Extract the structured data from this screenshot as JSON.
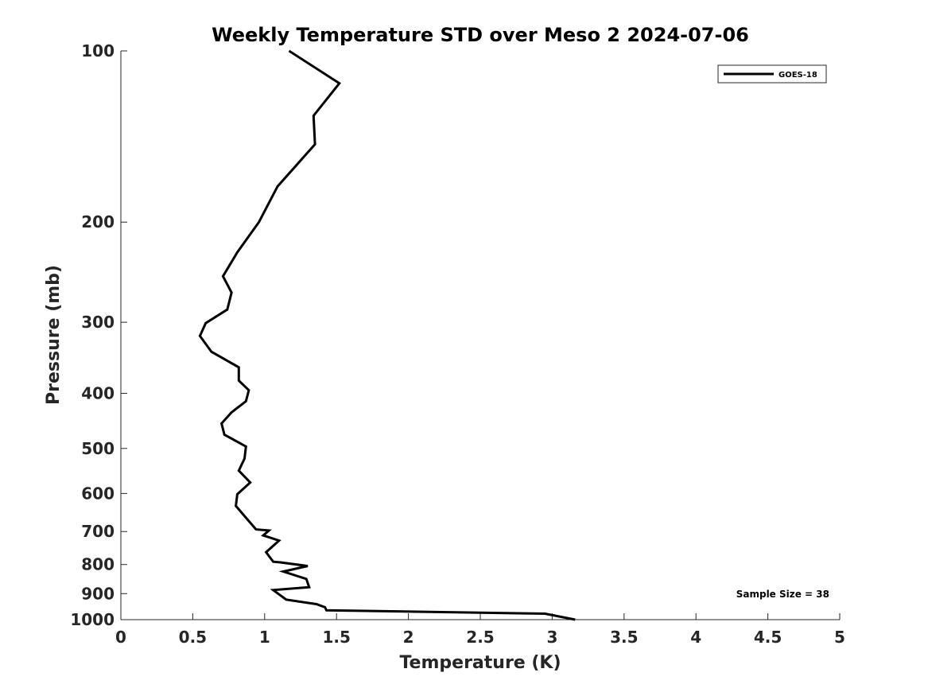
{
  "chart_data": {
    "type": "line",
    "title": "Weekly Temperature STD over Meso 2 2024-07-06",
    "xlabel": "Temperature (K)",
    "ylabel": "Pressure (mb)",
    "xlim": [
      0,
      5
    ],
    "ylim": [
      100,
      1000
    ],
    "yscale": "log",
    "yreversed": true,
    "xticks": [
      0,
      0.5,
      1,
      1.5,
      2,
      2.5,
      3,
      3.5,
      4,
      4.5,
      5
    ],
    "xtick_labels": [
      "0",
      "0.5",
      "1",
      "1.5",
      "2",
      "2.5",
      "3",
      "3.5",
      "4",
      "4.5",
      "5"
    ],
    "yticks": [
      100,
      200,
      300,
      400,
      500,
      600,
      700,
      800,
      900,
      1000
    ],
    "ytick_labels": [
      "100",
      "200",
      "300",
      "400",
      "500",
      "600",
      "700",
      "800",
      "900",
      "1000"
    ],
    "legend_position": "top-right",
    "series": [
      {
        "name": "GOES-18",
        "color": "#000000",
        "x": [
          1.17,
          1.52,
          1.34,
          1.35,
          1.09,
          0.96,
          0.81,
          0.71,
          0.77,
          0.74,
          0.59,
          0.55,
          0.63,
          0.82,
          0.82,
          0.89,
          0.87,
          0.77,
          0.7,
          0.72,
          0.87,
          0.86,
          0.82,
          0.9,
          0.81,
          0.8,
          0.87,
          0.94,
          1.03,
          0.99,
          1.1,
          1.01,
          1.06,
          1.11,
          1.3,
          1.13,
          1.29,
          1.31,
          1.06,
          1.15,
          1.36,
          1.42,
          1.43,
          2.95,
          3.16
        ],
        "y": [
          100,
          114,
          130,
          146,
          173,
          200,
          226,
          249,
          266,
          285,
          301,
          317,
          338,
          360,
          380,
          395,
          413,
          432,
          452,
          473,
          496,
          521,
          547,
          574,
          602,
          631,
          662,
          694,
          697,
          711,
          726,
          761,
          791,
          793,
          805,
          823,
          848,
          877,
          887,
          922,
          939,
          951,
          963,
          976,
          1000
        ]
      }
    ],
    "annotation": "Sample Size = 38"
  }
}
